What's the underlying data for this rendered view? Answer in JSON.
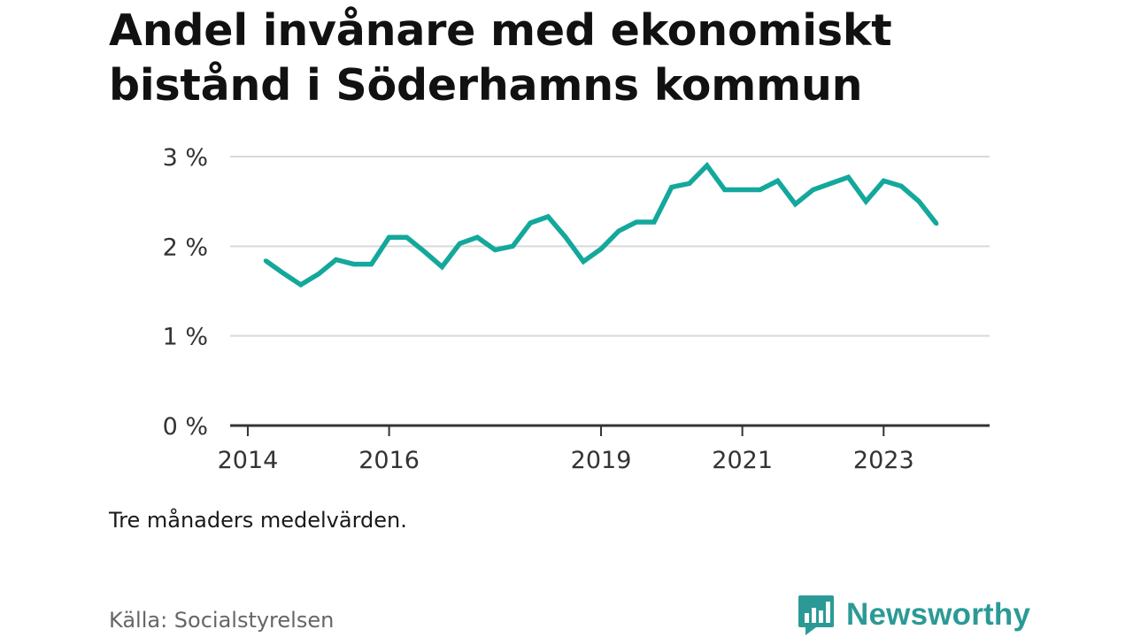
{
  "title": "Andel invånare med ekonomiskt bistånd i Söderhamns kommun",
  "note": "Tre månaders medelvärden.",
  "source": "Källa: Socialstyrelsen",
  "brand": {
    "name": "Newsworthy",
    "color": "#2b9a96"
  },
  "colors": {
    "line": "#14a89c",
    "grid": "#d9d9d9",
    "axis": "#333333"
  },
  "chart_data": {
    "type": "line",
    "title": "Andel invånare med ekonomiskt bistånd i Söderhamns kommun",
    "xlabel": "",
    "ylabel": "",
    "y_unit": "%",
    "ylim": [
      0,
      3
    ],
    "y_ticks": [
      {
        "value": 0,
        "label": "0 %"
      },
      {
        "value": 1,
        "label": "1 %"
      },
      {
        "value": 2,
        "label": "2 %"
      },
      {
        "value": 3,
        "label": "3 %"
      }
    ],
    "x_ticks": [
      {
        "date": "2014-01",
        "label": "2014"
      },
      {
        "date": "2016-01",
        "label": "2016"
      },
      {
        "date": "2019-01",
        "label": "2019"
      },
      {
        "date": "2021-01",
        "label": "2021"
      },
      {
        "date": "2023-01",
        "label": "2023"
      }
    ],
    "xlim": [
      "2013-10",
      "2024-07"
    ],
    "grid": true,
    "legend": "none",
    "series": [
      {
        "points": [
          {
            "date": "2014-04",
            "value": 1.84
          },
          {
            "date": "2014-07",
            "value": 1.7
          },
          {
            "date": "2014-10",
            "value": 1.57
          },
          {
            "date": "2015-01",
            "value": 1.69
          },
          {
            "date": "2015-04",
            "value": 1.85
          },
          {
            "date": "2015-07",
            "value": 1.8
          },
          {
            "date": "2015-10",
            "value": 1.8
          },
          {
            "date": "2016-01",
            "value": 2.1
          },
          {
            "date": "2016-04",
            "value": 2.1
          },
          {
            "date": "2016-07",
            "value": 1.94
          },
          {
            "date": "2016-10",
            "value": 1.77
          },
          {
            "date": "2017-01",
            "value": 2.03
          },
          {
            "date": "2017-04",
            "value": 2.1
          },
          {
            "date": "2017-07",
            "value": 1.96
          },
          {
            "date": "2017-10",
            "value": 2.0
          },
          {
            "date": "2018-01",
            "value": 2.26
          },
          {
            "date": "2018-04",
            "value": 2.33
          },
          {
            "date": "2018-07",
            "value": 2.1
          },
          {
            "date": "2018-10",
            "value": 1.83
          },
          {
            "date": "2019-01",
            "value": 1.97
          },
          {
            "date": "2019-04",
            "value": 2.17
          },
          {
            "date": "2019-07",
            "value": 2.27
          },
          {
            "date": "2019-10",
            "value": 2.27
          },
          {
            "date": "2020-01",
            "value": 2.66
          },
          {
            "date": "2020-04",
            "value": 2.7
          },
          {
            "date": "2020-07",
            "value": 2.9
          },
          {
            "date": "2020-10",
            "value": 2.63
          },
          {
            "date": "2021-01",
            "value": 2.63
          },
          {
            "date": "2021-04",
            "value": 2.63
          },
          {
            "date": "2021-07",
            "value": 2.73
          },
          {
            "date": "2021-10",
            "value": 2.47
          },
          {
            "date": "2022-01",
            "value": 2.63
          },
          {
            "date": "2022-04",
            "value": 2.7
          },
          {
            "date": "2022-07",
            "value": 2.77
          },
          {
            "date": "2022-10",
            "value": 2.5
          },
          {
            "date": "2023-01",
            "value": 2.73
          },
          {
            "date": "2023-04",
            "value": 2.67
          },
          {
            "date": "2023-07",
            "value": 2.5
          },
          {
            "date": "2023-10",
            "value": 2.25
          }
        ]
      }
    ]
  }
}
